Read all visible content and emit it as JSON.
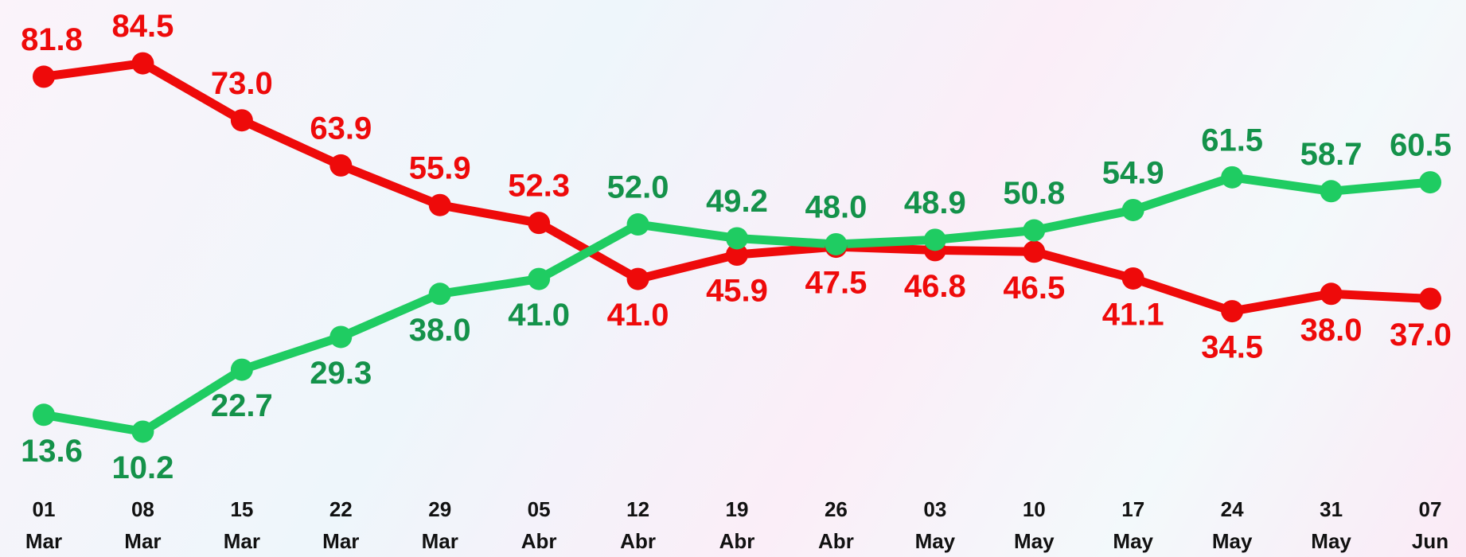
{
  "chart_data": {
    "type": "line",
    "categories": [
      [
        "01",
        "Mar"
      ],
      [
        "08",
        "Mar"
      ],
      [
        "15",
        "Mar"
      ],
      [
        "22",
        "Mar"
      ],
      [
        "29",
        "Mar"
      ],
      [
        "05",
        "Abr"
      ],
      [
        "12",
        "Abr"
      ],
      [
        "19",
        "Abr"
      ],
      [
        "26",
        "Abr"
      ],
      [
        "03",
        "May"
      ],
      [
        "10",
        "May"
      ],
      [
        "17",
        "May"
      ],
      [
        "24",
        "May"
      ],
      [
        "31",
        "May"
      ],
      [
        "07",
        "Jun"
      ]
    ],
    "series": [
      {
        "color": "#ee0a0a",
        "label_color": "#ee0a0a",
        "values": [
          81.8,
          84.5,
          73.0,
          63.9,
          55.9,
          52.3,
          41.0,
          45.9,
          47.5,
          46.8,
          46.5,
          41.1,
          34.5,
          38.0,
          37.0
        ],
        "value_labels": [
          "81.8",
          "84.5",
          "73.0",
          "63.9",
          "55.9",
          "52.3",
          "41.0",
          "45.9",
          "47.5",
          "46.8",
          "46.5",
          "41.1",
          "34.5",
          "38.0",
          "37.0"
        ]
      },
      {
        "color": "#1fcc62",
        "label_color": "#14924a",
        "values": [
          13.6,
          10.2,
          22.7,
          29.3,
          38.0,
          41.0,
          52.0,
          49.2,
          48.0,
          48.9,
          50.8,
          54.9,
          61.5,
          58.7,
          60.5
        ],
        "value_labels": [
          "13.6",
          "10.2",
          "22.7",
          "29.3",
          "38.0",
          "41.0",
          "52.0",
          "49.2",
          "48.0",
          "48.9",
          "50.8",
          "54.9",
          "61.5",
          "58.7",
          "60.5"
        ]
      }
    ],
    "ylim": [
      0,
      100
    ]
  }
}
